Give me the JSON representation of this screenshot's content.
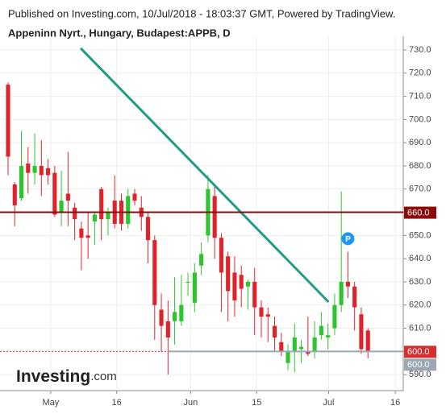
{
  "header": {
    "published": "Published on Investing.com, 10/Jul/2018 - 18:03:37 GMT, Powered by TradingView.",
    "symbol": "Appeninn Nyrt., Hungary, Budapest:APPB, D"
  },
  "logo": {
    "brand": "Investing",
    "suffix": ".com"
  },
  "chart_data": {
    "type": "candlestick",
    "series": [
      {
        "up_color": "#2dc52d",
        "down_color": "#e0232b",
        "open": [
          715,
          672,
          666,
          681,
          677,
          680,
          679,
          677,
          660,
          668,
          662,
          653,
          650,
          656,
          670,
          657,
          665,
          665,
          655,
          668,
          662,
          658,
          648,
          618,
          613,
          613,
          613,
          630,
          621,
          637,
          650,
          667,
          649,
          641,
          634,
          633,
          628,
          630,
          619,
          616,
          611,
          604,
          595,
          600,
          601,
          600,
          600,
          607,
          606,
          610,
          620,
          630,
          628,
          616,
          609
        ],
        "high": [
          716,
          673,
          695,
          688,
          694,
          691,
          683,
          680,
          678,
          686,
          664,
          656,
          660,
          660,
          671,
          662,
          676,
          668,
          670,
          670,
          667,
          660,
          650,
          625,
          622,
          632,
          633,
          634,
          638,
          647,
          676,
          671,
          651,
          643,
          641,
          637,
          631,
          636,
          622,
          619,
          615,
          608,
          603,
          612,
          605,
          615,
          613,
          617,
          612,
          625,
          669,
          643,
          630,
          619,
          610
        ],
        "low": [
          676,
          654,
          665,
          668,
          672,
          667,
          672,
          658,
          654,
          654,
          648,
          635,
          640,
          646,
          648,
          650,
          653,
          652,
          653,
          663,
          652,
          638,
          605,
          600,
          590,
          603,
          611,
          624,
          617,
          633,
          647,
          640,
          617,
          613,
          615,
          619,
          618,
          607,
          606,
          604,
          600,
          598,
          592,
          591,
          595,
          598,
          597,
          605,
          601,
          607,
          617,
          623,
          609,
          599,
          597
        ],
        "close": [
          684,
          663,
          680,
          677,
          680,
          676,
          676,
          659,
          665,
          665,
          657,
          649,
          649,
          659,
          657,
          660,
          655,
          655,
          667,
          665,
          658,
          648,
          620,
          611,
          606,
          617,
          620,
          630,
          634,
          642,
          670,
          649,
          634,
          626,
          622,
          627,
          630,
          619,
          615,
          615,
          606,
          600,
          600,
          606,
          602,
          599,
          606,
          611,
          607,
          620,
          630,
          628,
          619,
          601,
          600
        ]
      }
    ],
    "xlim": [
      -1.21,
      59.3
    ],
    "xticks": [
      {
        "value": 6.4,
        "label": "May"
      },
      {
        "value": 16.3,
        "label": "16"
      },
      {
        "value": 27.4,
        "label": "Jun"
      },
      {
        "value": 37.3,
        "label": "15"
      },
      {
        "value": 48.1,
        "label": "Jul"
      },
      {
        "value": 58.1,
        "label": "16"
      }
    ],
    "ylim": [
      583.1,
      735.9
    ],
    "yticks": [
      {
        "value": 590,
        "label": "590.0"
      },
      {
        "value": 600,
        "label": "600.0"
      },
      {
        "value": 610,
        "label": "610.0"
      },
      {
        "value": 620,
        "label": "620.0"
      },
      {
        "value": 630,
        "label": "630.0"
      },
      {
        "value": 640,
        "label": "640.0"
      },
      {
        "value": 650,
        "label": "650.0"
      },
      {
        "value": 660,
        "label": "660.0"
      },
      {
        "value": 670,
        "label": "670.0"
      },
      {
        "value": 680,
        "label": "680.0"
      },
      {
        "value": 690,
        "label": "690.0"
      },
      {
        "value": 700,
        "label": "700.0"
      },
      {
        "value": 710,
        "label": "710.0"
      },
      {
        "value": 720,
        "label": "720.0"
      },
      {
        "value": 730,
        "label": "730.0"
      }
    ],
    "levels": [
      {
        "value": 660,
        "label": "660.0",
        "color": "#8b0a0a",
        "style": "solid",
        "from": -1.21
      },
      {
        "value": 600,
        "label": "600.0",
        "color": "#d32f2f",
        "style": "dotted",
        "from": -1.21
      },
      {
        "value": 600,
        "label": "600.0",
        "color": "#9aa8b4",
        "style": "solid",
        "from": 24
      }
    ],
    "trendline": {
      "x": [
        10.9,
        48.1
      ],
      "y": [
        730.7,
        621.3
      ],
      "color": "#1e9c86"
    },
    "marker": {
      "x": 51,
      "y": 648.6,
      "label": "P",
      "color": "#2196f3"
    }
  }
}
